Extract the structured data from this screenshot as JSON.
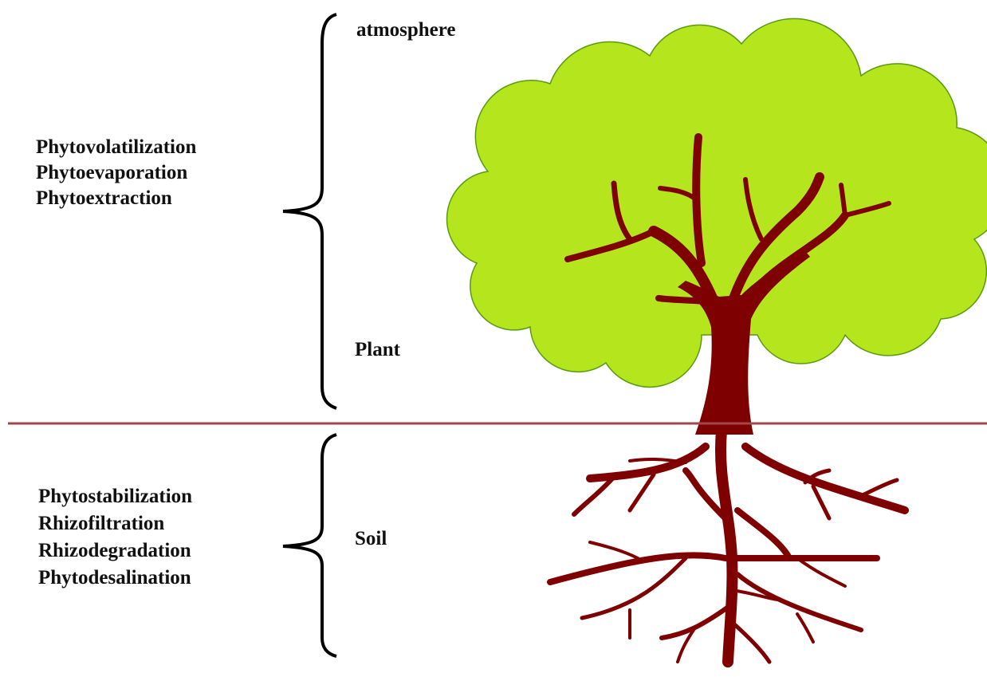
{
  "atmosphere": {
    "label": "atmosphere"
  },
  "plant": {
    "label": "Plant",
    "processes": [
      "Phytovolatilization",
      "Phytoevaporation",
      "Phytoextraction"
    ]
  },
  "soil": {
    "label": "Soil",
    "processes": [
      "Phytostabilization",
      "Rhizofiltration",
      "Rhizodegradation",
      "Phytodesalination"
    ]
  }
}
